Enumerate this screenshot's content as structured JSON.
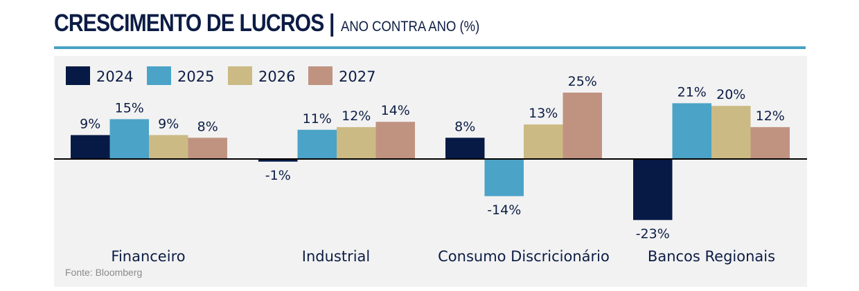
{
  "header": {
    "title": "CRESCIMENTO DE LUCROS |",
    "subtitle": "ANO CONTRA ANO (%)"
  },
  "source": "Fonte: Bloomberg",
  "colors": {
    "title": "#0c1c45",
    "rule": "#4aa3c4",
    "panel": "#f2f2f2",
    "axis": "#000000",
    "text": "#0c1c45"
  },
  "chart_data": {
    "type": "bar",
    "title": "CRESCIMENTO DE LUCROS",
    "subtitle": "ANO CONTRA ANO (%)",
    "xlabel": "",
    "ylabel": "",
    "ylim": [
      -23,
      25
    ],
    "grid": false,
    "legend_position": "top-left",
    "categories": [
      "Financeiro",
      "Industrial",
      "Consumo Discricionário",
      "Bancos Regionais"
    ],
    "series": [
      {
        "name": "2024",
        "color": "#071a45",
        "values": [
          9,
          -1,
          8,
          -23
        ],
        "labels": [
          "9%",
          "-1%",
          "8%",
          "-23%"
        ]
      },
      {
        "name": "2025",
        "color": "#4ba3c8",
        "values": [
          15,
          11,
          -14,
          21
        ],
        "labels": [
          "15%",
          "11%",
          "-14%",
          "21%"
        ]
      },
      {
        "name": "2026",
        "color": "#cbba84",
        "values": [
          9,
          12,
          13,
          20
        ],
        "labels": [
          "9%",
          "12%",
          "13%",
          "20%"
        ]
      },
      {
        "name": "2027",
        "color": "#c09381",
        "values": [
          8,
          14,
          25,
          12
        ],
        "labels": [
          "8%",
          "14%",
          "25%",
          "12%"
        ]
      }
    ]
  }
}
